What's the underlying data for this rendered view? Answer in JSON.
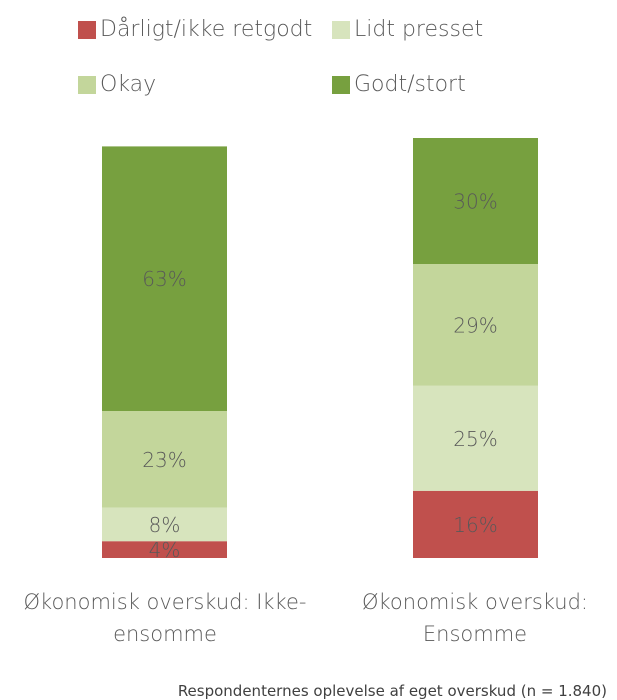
{
  "chart_data": {
    "type": "stacked-bar",
    "categories": [
      "Økonomisk overskud: Ikke-ensomme",
      "Økonomisk overskud: Ensomme"
    ],
    "series": [
      {
        "name": "Dårligt/ikke retgodt",
        "color": "#c0504d",
        "values": [
          4,
          16
        ],
        "value_labels": [
          "4%",
          "16%"
        ]
      },
      {
        "name": "Lidt presset",
        "color": "#d7e4bd",
        "values": [
          8,
          25
        ],
        "value_labels": [
          "8%",
          "25%"
        ]
      },
      {
        "name": "Okay",
        "color": "#c3d69b",
        "values": [
          23,
          29
        ],
        "value_labels": [
          "23%",
          "29%"
        ]
      },
      {
        "name": "Godt/stort",
        "color": "#77a03f",
        "values": [
          63,
          30
        ],
        "value_labels": [
          "63%",
          "30%"
        ]
      }
    ],
    "ylim": [
      0,
      100
    ],
    "footnote": "Respondenternes oplevelse af eget overskud (n = 1.840)"
  }
}
